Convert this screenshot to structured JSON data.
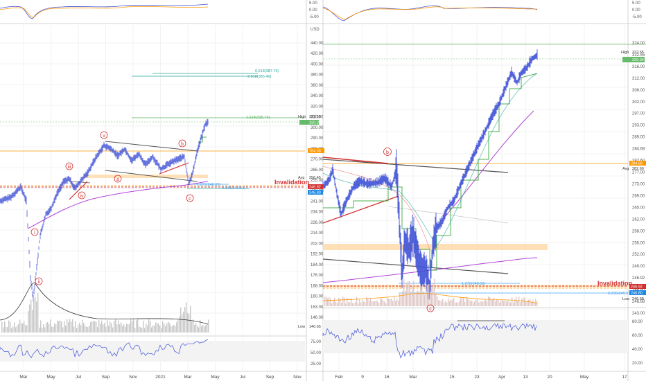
{
  "colors": {
    "candle": "#3f51d6",
    "wave_label": "#d32f2f",
    "fib": "#26a69a",
    "fib_blue": "#42a5f5",
    "ma_purple": "#b040d8",
    "kijun_green": "#4caf50",
    "orange_line": "#ff9800",
    "invalidation": "#d32f2f",
    "high_line": "#66bb6a",
    "grid": "#e6e6e6"
  },
  "chart_data": [
    {
      "type": "line",
      "panel": "left-price",
      "ylabel": "USD",
      "yticks": [
        "440.00",
        "420.00",
        "400.00",
        "380.00",
        "360.00",
        "340.00",
        "320.00",
        "310.00",
        "300.00",
        "290.00",
        "280.00",
        "270.00",
        "265.00",
        "255.00",
        "248.00",
        "241.00",
        "234.00",
        "226.00",
        "214.00",
        "202.00",
        "192.00",
        "184.00",
        "176.00",
        "168.00",
        "160.00",
        "153.00",
        "146.00"
      ],
      "xticks": [
        "Mar",
        "May",
        "Jul",
        "Sep",
        "Nov",
        "2021",
        "Mar",
        "May",
        "Jul",
        "Sep",
        "Nov"
      ],
      "wave_labels": [
        "i",
        "ii",
        "iii",
        "iv",
        "v",
        "a",
        "b",
        "c"
      ],
      "fib_levels": [
        {
          "label": "0.618(387.76)",
          "value": 387.76
        },
        {
          "label": "2.618(385.46)",
          "value": 385.46
        },
        {
          "label": "1.618(325.74)",
          "value": 325.74
        },
        {
          "label": "1.272(248.09)",
          "value": 248.09
        },
        {
          "label": "0.236(245.51)",
          "value": 245.51
        }
      ],
      "annotations": [
        "Invalidation"
      ],
      "price_badges": [
        {
          "label": "High",
          "value": "322.55"
        },
        {
          "label": "",
          "value": "320.34"
        },
        {
          "label": "",
          "value": "284.68"
        },
        {
          "label": "Avg",
          "value": "256.45"
        },
        {
          "label": "",
          "value": "246.92"
        },
        {
          "label": "",
          "value": "246.80"
        },
        {
          "label": "Low",
          "value": "140.65"
        }
      ],
      "series": [
        {
          "name": "price",
          "x": [
            "Mar",
            "Apr",
            "May",
            "Jun",
            "Jul",
            "Aug",
            "Sep",
            "Oct",
            "Nov",
            "Dec",
            "2021",
            "Feb",
            "Mar"
          ],
          "values": [
            160,
            200,
            232,
            245,
            270,
            285,
            300,
            290,
            282,
            290,
            288,
            300,
            325
          ]
        }
      ]
    },
    {
      "type": "line",
      "panel": "right-price",
      "yticks": [
        "324.00",
        "322.55",
        "316.00",
        "312.00",
        "306.00",
        "302.00",
        "297.00",
        "293.00",
        "289.00",
        "284.68",
        "282.60",
        "277.00",
        "273.00",
        "269.00",
        "265.00",
        "262.00",
        "258.00",
        "255.00",
        "252.00",
        "249.00",
        "246.92",
        "246.80",
        "246.68",
        "243.00"
      ],
      "xticks": [
        "Feb",
        "9",
        "16",
        "Mar",
        "15",
        "23",
        "Apr",
        "13",
        "20",
        "May",
        "17"
      ],
      "wave_labels": [
        "b",
        "c"
      ],
      "fib_levels": [
        {
          "label": "1.272(248.09)",
          "value": 248.09
        },
        {
          "label": "0.236(245.51)",
          "value": 245.51
        }
      ],
      "annotations": [
        "Invalidation"
      ],
      "price_badges": [
        {
          "label": "High",
          "value": "322.55"
        },
        {
          "label": "",
          "value": "320.34"
        },
        {
          "label": "",
          "value": "284.68"
        },
        {
          "label": "Avg",
          "value": "282.60"
        },
        {
          "label": "",
          "value": "246.92"
        },
        {
          "label": "",
          "value": "246.80"
        },
        {
          "label": "Low",
          "value": "246.68"
        }
      ]
    },
    {
      "type": "line",
      "panel": "oscillators",
      "yticks_top": [
        "5.00",
        "0.00",
        "-5.00"
      ],
      "yticks_left_rsi": [
        "75.00",
        "50.00",
        "25.00"
      ],
      "yticks_right_rsi": [
        "80.00",
        "60.00",
        "40.00",
        "20.00"
      ]
    }
  ]
}
